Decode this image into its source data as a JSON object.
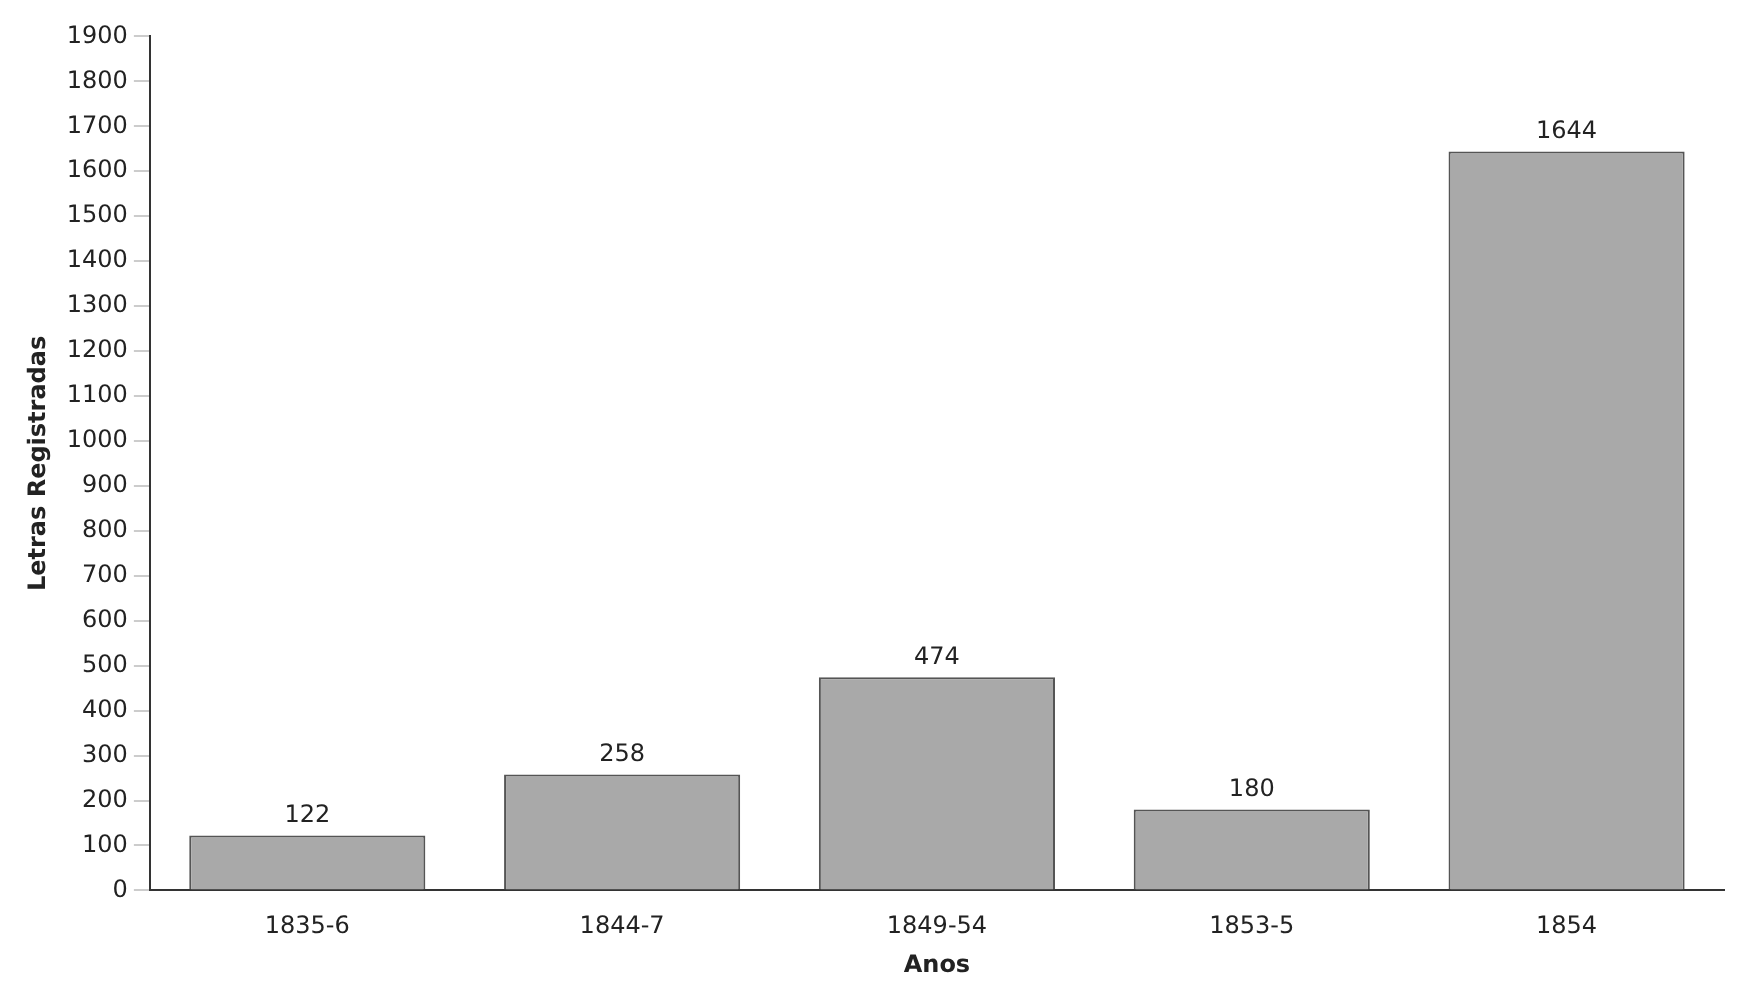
{
  "chart_data": {
    "type": "bar",
    "xlabel": "Anos",
    "ylabel": "Letras Registradas",
    "categories": [
      "1835-6",
      "1844-7",
      "1849-54",
      "1853-5",
      "1854"
    ],
    "values": [
      122,
      258,
      474,
      180,
      1644
    ],
    "color": "#a9a9a9",
    "ylim": [
      0,
      1900
    ],
    "yticks": [
      0,
      100,
      200,
      300,
      400,
      500,
      600,
      700,
      800,
      900,
      1000,
      1100,
      1200,
      1300,
      1400,
      1500,
      1600,
      1700,
      1800,
      1900
    ],
    "grid": false,
    "legend": false,
    "data_labels": true
  }
}
